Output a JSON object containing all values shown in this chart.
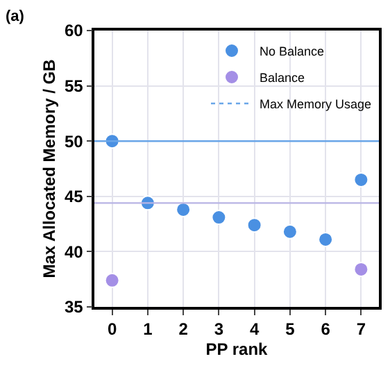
{
  "chart_data": {
    "type": "scatter",
    "title": "(a)",
    "xlabel": "PP rank",
    "ylabel": "Max Allocated Memory / GB",
    "categories": [
      "0",
      "1",
      "2",
      "3",
      "4",
      "5",
      "6",
      "7"
    ],
    "series": [
      {
        "name": "No Balance",
        "color": "#4a90e2",
        "values": [
          50.0,
          44.4,
          43.8,
          43.1,
          42.4,
          41.8,
          41.1,
          46.5
        ]
      },
      {
        "name": "Balance",
        "color": "#a48fe6",
        "values": [
          37.4,
          null,
          null,
          null,
          null,
          null,
          null,
          38.4
        ]
      }
    ],
    "ref_lines": [
      {
        "axis": "y",
        "value": 50.0,
        "label": "Max Memory Usage",
        "color": "#6aa6e8"
      },
      {
        "axis": "y",
        "value": 44.4,
        "label": null,
        "color": "#b8b4e4"
      }
    ],
    "ylim": [
      35,
      60
    ],
    "yticks": [
      35,
      40,
      45,
      50,
      55,
      60
    ],
    "grid": true,
    "legend": "top right",
    "marker": "circle"
  }
}
